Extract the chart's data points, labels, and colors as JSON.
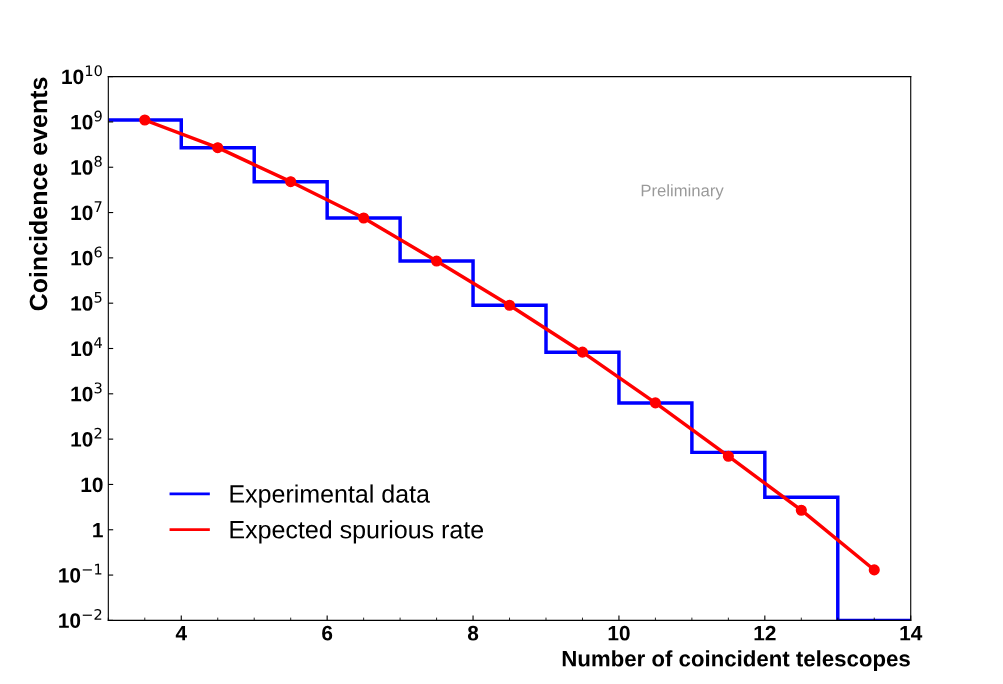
{
  "chart_data": {
    "type": "histogram",
    "xlabel": "Number of coincident telescopes",
    "ylabel": "Coincidence events",
    "annotations": [
      "Preliminary"
    ],
    "series": [
      {
        "name": "Experimental data",
        "color": "#0000ff",
        "bins": [
          3,
          4,
          5,
          6,
          7,
          8,
          9,
          10,
          11,
          12,
          13,
          14
        ],
        "values": [
          1100000000.0,
          270000000.0,
          48000000.0,
          7600000.0,
          850000.0,
          90000.0,
          8300.0,
          630,
          51,
          5.2,
          0.01
        ]
      },
      {
        "type": "line",
        "name": "Expected spurious rate",
        "color": "#ff0000",
        "marker": "circle",
        "x": [
          3.5,
          4.5,
          5.5,
          6.5,
          7.5,
          8.5,
          9.5,
          10.5,
          11.5,
          12.5,
          13.5
        ],
        "values": [
          1100000000.0,
          270000000.0,
          48000000.0,
          7600000.0,
          850000.0,
          90000.0,
          8300.0,
          630,
          42,
          2.7,
          0.13
        ]
      }
    ],
    "log": "y",
    "xlim": [
      3,
      14
    ],
    "xticks": [
      4,
      6,
      8,
      10,
      12,
      14
    ],
    "ylim": [
      0.01,
      10000000000.0
    ],
    "yticks": [
      {
        "value": 0.01,
        "label": "10$^{−2}$"
      },
      {
        "value": 0.1,
        "label": "10$^{−1}$"
      },
      1,
      10,
      {
        "value": 100,
        "label": "10$^{2}$"
      },
      {
        "value": 1000,
        "label": "10$^{3}$"
      },
      {
        "value": 10000.0,
        "label": "10$^{4}$"
      },
      {
        "value": 100000.0,
        "label": "10$^{5}$"
      },
      {
        "value": 1000000.0,
        "label": "10$^{6}$"
      },
      {
        "value": 10000000.0,
        "label": "10$^{7}$"
      },
      {
        "value": 100000000.0,
        "label": "10$^{8}$"
      },
      {
        "value": 1000000000.0,
        "label": "10$^{9}$"
      },
      {
        "value": 10000000000.0,
        "label": "10$^{10}$"
      }
    ],
    "grid": false,
    "legend": "bottom left"
  }
}
